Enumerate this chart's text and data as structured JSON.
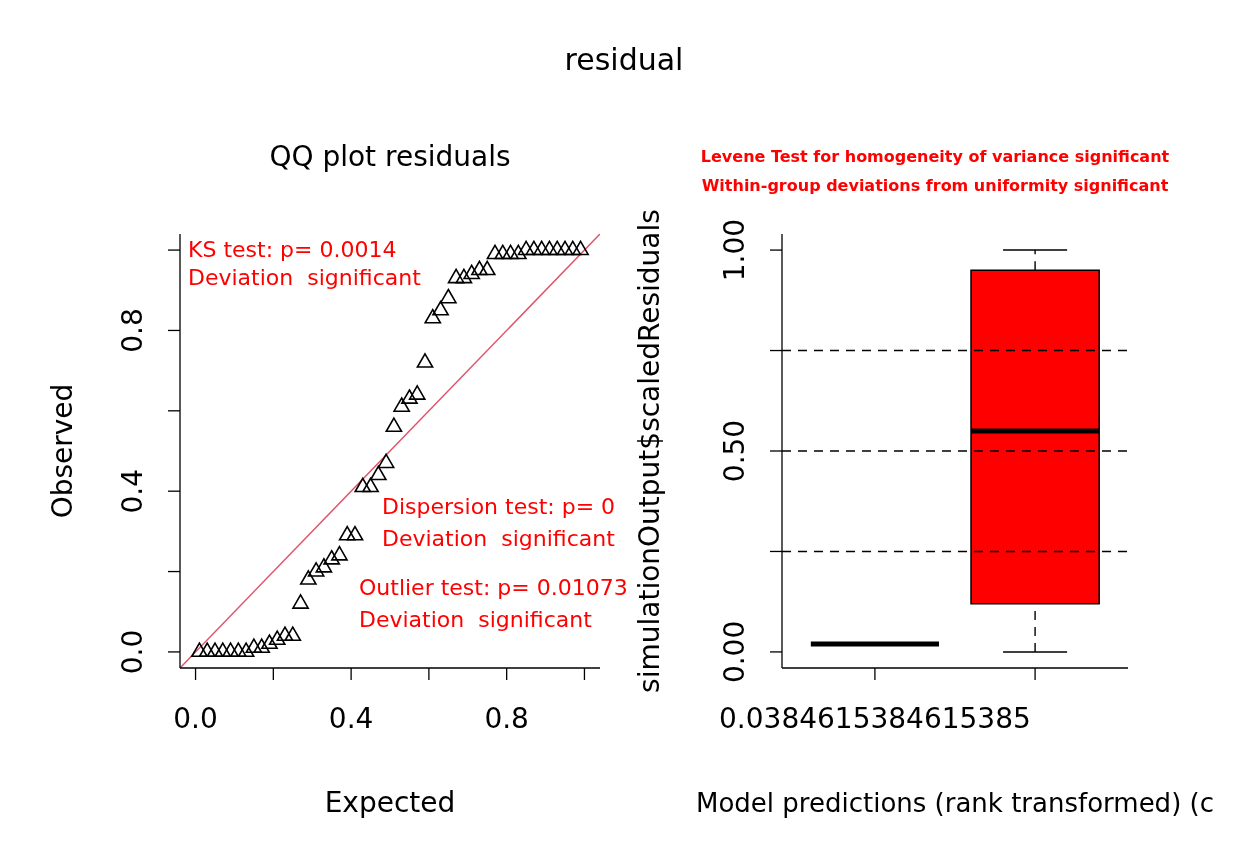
{
  "chart_data": [
    {
      "type": "other",
      "title": "residual"
    },
    {
      "type": "scatter",
      "title": "QQ plot residuals",
      "xlabel": "Expected",
      "ylabel": "Observed",
      "xlim": [
        -0.04,
        1.04
      ],
      "ylim": [
        -0.04,
        1.04
      ],
      "xticks": [
        {
          "value": 0,
          "label": "0.0"
        },
        {
          "value": 0.2,
          "label": null
        },
        0.4,
        {
          "value": 0.6,
          "label": null
        },
        0.8,
        {
          "value": 1,
          "label": null
        }
      ],
      "yticks": [
        {
          "value": 0,
          "label": "0.0"
        },
        {
          "value": 0.2,
          "label": null
        },
        0.4,
        {
          "value": 0.6,
          "label": null
        },
        0.8,
        {
          "value": 1,
          "label": null
        }
      ],
      "annotations": [
        "KS test: p= 0.0014",
        "Deviation  significant",
        "Dispersion test: p= 0",
        "Deviation  significant",
        "Outlier test: p= 0.01073",
        "Deviation  significant"
      ],
      "series": [
        {
          "type": "scatter",
          "color": "#000000",
          "marker": "triangle",
          "x": [
            0.01,
            0.03,
            0.05,
            0.07,
            0.09,
            0.11,
            0.13,
            0.15,
            0.17,
            0.19,
            0.21,
            0.23,
            0.25,
            0.27,
            0.29,
            0.31,
            0.33,
            0.35,
            0.37,
            0.39,
            0.41,
            0.43,
            0.45,
            0.47,
            0.49,
            0.51,
            0.53,
            0.55,
            0.57,
            0.59,
            0.61,
            0.63,
            0.65,
            0.67,
            0.69,
            0.71,
            0.73,
            0.75,
            0.77,
            0.79,
            0.81,
            0.83,
            0.85,
            0.87,
            0.89,
            0.91,
            0.93,
            0.95,
            0.97,
            0.99
          ],
          "values": [
            0,
            0,
            0,
            0,
            0,
            0,
            0,
            0.01,
            0.01,
            0.02,
            0.03,
            0.04,
            0.04,
            0.12,
            0.18,
            0.2,
            0.21,
            0.23,
            0.24,
            0.29,
            0.29,
            0.41,
            0.41,
            0.44,
            0.47,
            0.56,
            0.61,
            0.63,
            0.64,
            0.72,
            0.83,
            0.85,
            0.88,
            0.93,
            0.93,
            0.94,
            0.95,
            0.95,
            0.99,
            0.99,
            0.99,
            0.99,
            1,
            1,
            1,
            1,
            1,
            1,
            1,
            1
          ]
        },
        {
          "type": "line",
          "color": "#df536b",
          "x": [
            -0.04,
            1.04
          ],
          "values": [
            -0.04,
            1.04
          ]
        }
      ]
    },
    {
      "type": "box",
      "title": "Levene Test for homogeneity of variance significant",
      "subtitle": "Within-group deviations from uniformity significant",
      "xlabel": "Model predictions (rank transformed) (c",
      "ylabel": "simulationOutput$scaledResiduals",
      "categories": [
        "0.0384615384615385",
        null
      ],
      "boxes": [
        {
          "low": 0.02,
          "q1": 0.02,
          "median": 0.02,
          "q3": 0.02,
          "high": 0.02
        },
        {
          "low": 0,
          "q1": 0.12,
          "median": 0.55,
          "q3": 0.95,
          "high": 1
        }
      ],
      "colors": [
        "#000000",
        "#ff0000"
      ],
      "ylim": [
        -0.04,
        1.04
      ],
      "yticks": [
        {
          "value": 0,
          "label": "0.00"
        },
        {
          "value": 0.25,
          "label": null
        },
        {
          "value": 0.5,
          "label": "0.50"
        },
        {
          "value": 0.75,
          "label": null
        },
        {
          "value": 1,
          "label": "1.00"
        }
      ],
      "ref_lines": [
        {
          "axis": "y",
          "value": 0.25,
          "line_style": "dashed",
          "color": "#000000"
        },
        {
          "axis": "y",
          "value": 0.5,
          "line_style": "dashed",
          "color": "#000000"
        },
        {
          "axis": "y",
          "value": 0.75,
          "line_style": "dashed",
          "color": "#000000"
        }
      ]
    }
  ]
}
